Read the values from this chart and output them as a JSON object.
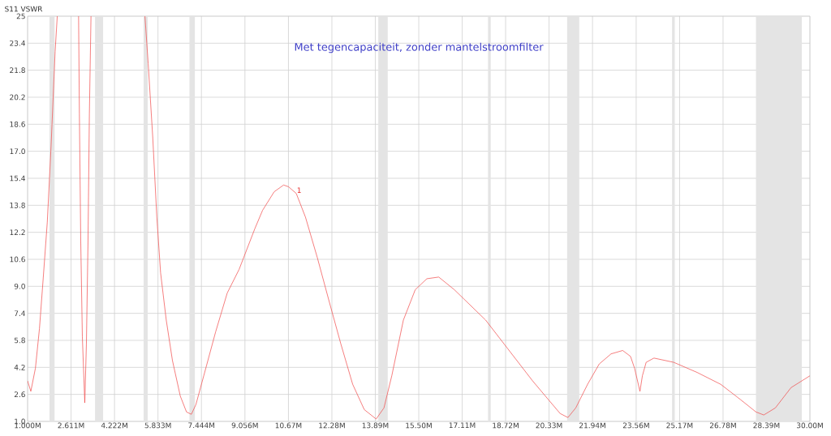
{
  "chart_data": {
    "type": "line",
    "title": "Met tegencapaciteit, zonder mantelstroomfilter",
    "ylabel": "S11 VSWR",
    "x": [
      1.0,
      1.12,
      1.29,
      1.44,
      1.58,
      1.73,
      1.87,
      2.02,
      2.1,
      2.5,
      2.89,
      2.92,
      2.97,
      3.03,
      3.12,
      3.18,
      3.24,
      3.29,
      3.35,
      4.5,
      5.35,
      5.47,
      5.64,
      5.79,
      5.93,
      6.14,
      6.37,
      6.66,
      6.89,
      7.07,
      7.24,
      7.53,
      7.97,
      8.4,
      8.84,
      9.13,
      9.42,
      9.71,
      10.14,
      10.49,
      10.67,
      10.96,
      11.3,
      11.74,
      12.18,
      12.61,
      13.05,
      13.48,
      13.92,
      14.21,
      14.5,
      14.93,
      15.37,
      15.8,
      16.24,
      16.82,
      17.4,
      17.98,
      18.56,
      19.14,
      19.72,
      20.3,
      20.74,
      21.03,
      21.32,
      21.76,
      22.19,
      22.63,
      23.06,
      23.35,
      23.5,
      23.7,
      23.79,
      23.93,
      24.22,
      24.95,
      25.82,
      26.69,
      27.42,
      28.0,
      28.29,
      28.72,
      29.3,
      30.0
    ],
    "series": [
      {
        "color": "#f04848",
        "values": [
          3.4,
          2.78,
          4.15,
          6.5,
          9.5,
          12.8,
          17.3,
          22.9,
          25,
          null,
          25,
          19.2,
          11.7,
          6.0,
          2.1,
          5.6,
          11.7,
          19.2,
          25,
          null,
          25,
          22.2,
          17.8,
          13.1,
          9.8,
          7.0,
          4.6,
          2.5,
          1.56,
          1.42,
          2.0,
          3.7,
          6.3,
          8.6,
          10.0,
          11.2,
          12.4,
          13.5,
          14.6,
          15.0,
          14.9,
          14.5,
          13.1,
          10.7,
          8.1,
          5.6,
          3.2,
          1.7,
          1.14,
          1.8,
          3.7,
          7.0,
          8.8,
          9.45,
          9.55,
          8.8,
          7.9,
          7.0,
          5.8,
          4.6,
          3.4,
          2.3,
          1.47,
          1.23,
          1.8,
          3.2,
          4.4,
          5.0,
          5.2,
          4.85,
          4.15,
          2.78,
          3.7,
          4.5,
          4.75,
          4.5,
          3.9,
          3.2,
          2.3,
          1.56,
          1.38,
          1.8,
          3.0,
          3.7
        ]
      }
    ],
    "xlim": [
      1.0,
      30.0
    ],
    "ylim": [
      1.0,
      25
    ],
    "xticks": [
      {
        "value": 1.0,
        "label": "1.000M"
      },
      {
        "value": 2.611,
        "label": "2.611M"
      },
      {
        "value": 4.222,
        "label": "4.222M"
      },
      {
        "value": 5.833,
        "label": "5.833M"
      },
      {
        "value": 7.444,
        "label": "7.444M"
      },
      {
        "value": 9.056,
        "label": "9.056M"
      },
      {
        "value": 10.67,
        "label": "10.67M"
      },
      {
        "value": 12.28,
        "label": "12.28M"
      },
      {
        "value": 13.89,
        "label": "13.89M"
      },
      {
        "value": 15.5,
        "label": "15.50M"
      },
      {
        "value": 17.11,
        "label": "17.11M"
      },
      {
        "value": 18.72,
        "label": "18.72M"
      },
      {
        "value": 20.33,
        "label": "20.33M"
      },
      {
        "value": 21.94,
        "label": "21.94M"
      },
      {
        "value": 23.56,
        "label": "23.56M"
      },
      {
        "value": 25.17,
        "label": "25.17M"
      },
      {
        "value": 26.78,
        "label": "26.78M"
      },
      {
        "value": 28.39,
        "label": "28.39M"
      },
      {
        "value": 30.0,
        "label": "30.00M"
      }
    ],
    "yticks": [
      {
        "value": 1,
        "label": "1.0"
      },
      2.6,
      4.2,
      5.8,
      7.4,
      {
        "value": 9,
        "label": "9.0"
      },
      10.6,
      12.2,
      13.8,
      15.4,
      {
        "value": 17,
        "label": "17.0"
      },
      18.6,
      20.2,
      21.8,
      23.4,
      25
    ],
    "bands": [
      {
        "axis": "x",
        "from": 1.81,
        "to": 2.0,
        "color": "#e4e4e4"
      },
      {
        "axis": "x",
        "from": 3.5,
        "to": 3.8,
        "color": "#e4e4e4"
      },
      {
        "axis": "x",
        "from": 5.3,
        "to": 5.45,
        "color": "#e4e4e4"
      },
      {
        "axis": "x",
        "from": 7.0,
        "to": 7.2,
        "color": "#e4e4e4"
      },
      {
        "axis": "x",
        "from": 14.0,
        "to": 14.35,
        "color": "#e4e4e4"
      },
      {
        "axis": "x",
        "from": 18.068,
        "to": 18.168,
        "color": "#e4e4e4"
      },
      {
        "axis": "x",
        "from": 21.0,
        "to": 21.45,
        "color": "#e4e4e4"
      },
      {
        "axis": "x",
        "from": 24.89,
        "to": 24.99,
        "color": "#e4e4e4"
      },
      {
        "axis": "x",
        "from": 28.0,
        "to": 29.7,
        "color": "#e4e4e4"
      }
    ],
    "annotations": [
      {
        "text": "1",
        "x": 10.96,
        "y": 14.5
      }
    ],
    "grid": true,
    "line_style": "solid"
  }
}
